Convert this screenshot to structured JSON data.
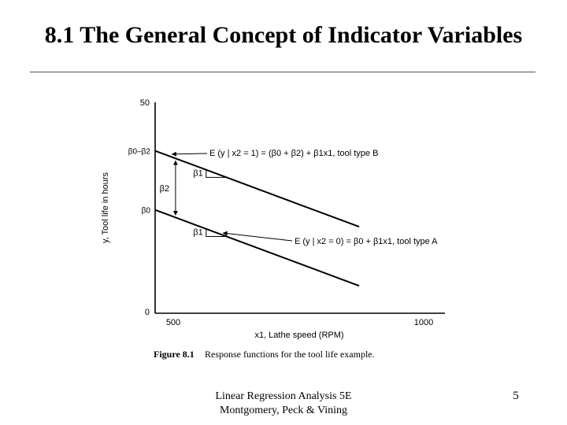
{
  "slide": {
    "title": "8.1 The General Concept of Indicator Variables",
    "footer_line1": "Linear Regression Analysis 5E",
    "footer_line2": "Montgomery, Peck & Vining",
    "page_number": "5"
  },
  "chart_data": {
    "type": "line",
    "xlabel": "x1, Lathe speed (RPM)",
    "ylabel": "y, Tool life in hours",
    "xlim": [
      500,
      1000
    ],
    "ylim": [
      0,
      50
    ],
    "x_ticks": [
      "500",
      "1000"
    ],
    "y_ticks": [
      "0",
      "50"
    ],
    "caption_label": "Figure 8.1",
    "caption_text": "Response functions for the tool life example.",
    "y_axis_markers": [
      {
        "label": "β0–β2",
        "y": 38.5
      },
      {
        "label": "β0",
        "y": 24.5
      }
    ],
    "series": [
      {
        "x": [
          500,
          900
        ],
        "y": [
          38.5,
          20.5
        ],
        "label": "E (y | x2 = 1) = (β0 + β2) + β1x1, tool type B"
      },
      {
        "x": [
          500,
          900
        ],
        "y": [
          24.5,
          6.5
        ],
        "label": "E (y | x2 = 0) = β0 + β1x1, tool type A"
      }
    ],
    "annotations": {
      "gap_label": "β2",
      "slope_label_upper": "β1",
      "slope_label_lower": "β1"
    },
    "grid": false
  }
}
